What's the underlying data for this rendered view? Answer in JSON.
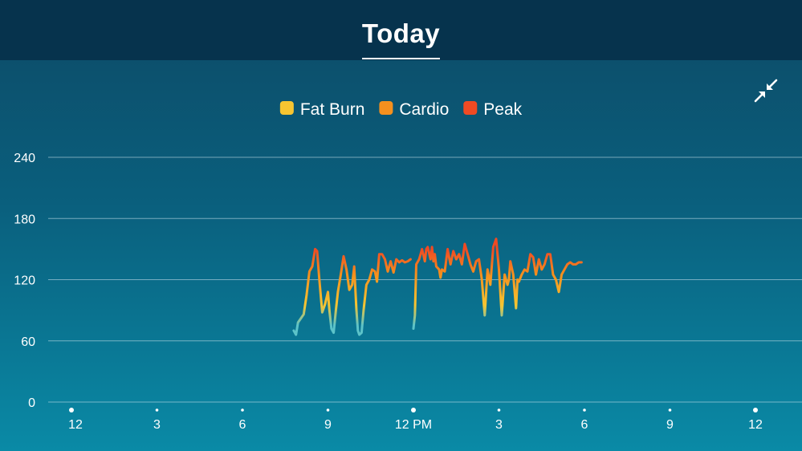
{
  "header": {
    "title": "Today"
  },
  "controls": {
    "collapse_icon": "collapse-arrows-icon"
  },
  "colors": {
    "fat_burn": "#f7c531",
    "cardio": "#f5901e",
    "peak": "#f04a23",
    "below_zone": "#5cc3c9",
    "grid": "#cfe6ee",
    "text": "#ffffff"
  },
  "chart_data": {
    "type": "line",
    "title": "",
    "xlabel": "",
    "ylabel": "",
    "legend": {
      "placement": "top-center",
      "entries": [
        {
          "name": "Fat Burn",
          "color": "#f7c531"
        },
        {
          "name": "Cardio",
          "color": "#f5901e"
        },
        {
          "name": "Peak",
          "color": "#f04a23"
        }
      ]
    },
    "y_ticks": [
      "240",
      "180",
      "120",
      "60",
      "0"
    ],
    "y_tick_values": [
      240,
      180,
      120,
      60,
      0
    ],
    "ylim": [
      0,
      240
    ],
    "x_ticks": [
      "12",
      "3",
      "6",
      "9",
      "12 PM",
      "3",
      "6",
      "9",
      "12"
    ],
    "x_tick_values": [
      0,
      3,
      6,
      9,
      12,
      15,
      18,
      21,
      24
    ],
    "xlim": [
      0,
      24
    ],
    "grid": true,
    "zone_thresholds": {
      "fat_burn_min": 95,
      "cardio_min": 125,
      "peak_min": 150
    },
    "series": [
      {
        "segments": [
          {
            "x": [
              7.8,
              7.88,
              7.95,
              8.05,
              8.15,
              8.25,
              8.35,
              8.45,
              8.55,
              8.62,
              8.7,
              8.8,
              8.9,
              9.0,
              9.05,
              9.12,
              9.2,
              9.28,
              9.35,
              9.45,
              9.55,
              9.65,
              9.75,
              9.85,
              9.92,
              10.0,
              10.05,
              10.1,
              10.18,
              10.25,
              10.35,
              10.45,
              10.55,
              10.65,
              10.72,
              10.8,
              10.9,
              11.0,
              11.1,
              11.2,
              11.3,
              11.4,
              11.5,
              11.6,
              11.7,
              11.8,
              11.9
            ],
            "y": [
              70,
              66,
              78,
              82,
              86,
              105,
              128,
              133,
              150,
              148,
              120,
              88,
              96,
              108,
              90,
              72,
              68,
              90,
              108,
              125,
              143,
              130,
              110,
              115,
              133,
              90,
              70,
              66,
              68,
              90,
              115,
              120,
              130,
              128,
              118,
              145,
              145,
              140,
              128,
              138,
              127,
              140,
              137,
              139,
              137,
              138,
              140
            ]
          },
          {
            "x": [
              12.0,
              12.05,
              12.1,
              12.2,
              12.3,
              12.4,
              12.45,
              12.5,
              12.6,
              12.65,
              12.7,
              12.75,
              12.8,
              12.9,
              12.95,
              13.0,
              13.1,
              13.2,
              13.25,
              13.3,
              13.4,
              13.5,
              13.6,
              13.7,
              13.8,
              13.9,
              14.0,
              14.1,
              14.2,
              14.3,
              14.4,
              14.5,
              14.6,
              14.7,
              14.8,
              14.9,
              15.0,
              15.1,
              15.2,
              15.3,
              15.35,
              15.4,
              15.5,
              15.6,
              15.65,
              15.7,
              15.8,
              15.9,
              16.0,
              16.1,
              16.2,
              16.3,
              16.4,
              16.5,
              16.6,
              16.7,
              16.8,
              16.9,
              17.0,
              17.1,
              17.2,
              17.3,
              17.4,
              17.5,
              17.6,
              17.7,
              17.8,
              17.9
            ],
            "y": [
              72,
              85,
              135,
              140,
              150,
              138,
              150,
              152,
              140,
              152,
              138,
              145,
              133,
              130,
              122,
              130,
              128,
              150,
              142,
              135,
              148,
              140,
              145,
              135,
              155,
              145,
              135,
              128,
              138,
              140,
              120,
              85,
              130,
              115,
              152,
              160,
              130,
              85,
              125,
              115,
              120,
              138,
              125,
              92,
              120,
              118,
              125,
              130,
              128,
              145,
              142,
              125,
              140,
              130,
              135,
              145,
              145,
              125,
              120,
              108,
              125,
              130,
              135,
              137,
              135,
              135,
              137,
              137
            ]
          }
        ]
      }
    ]
  }
}
